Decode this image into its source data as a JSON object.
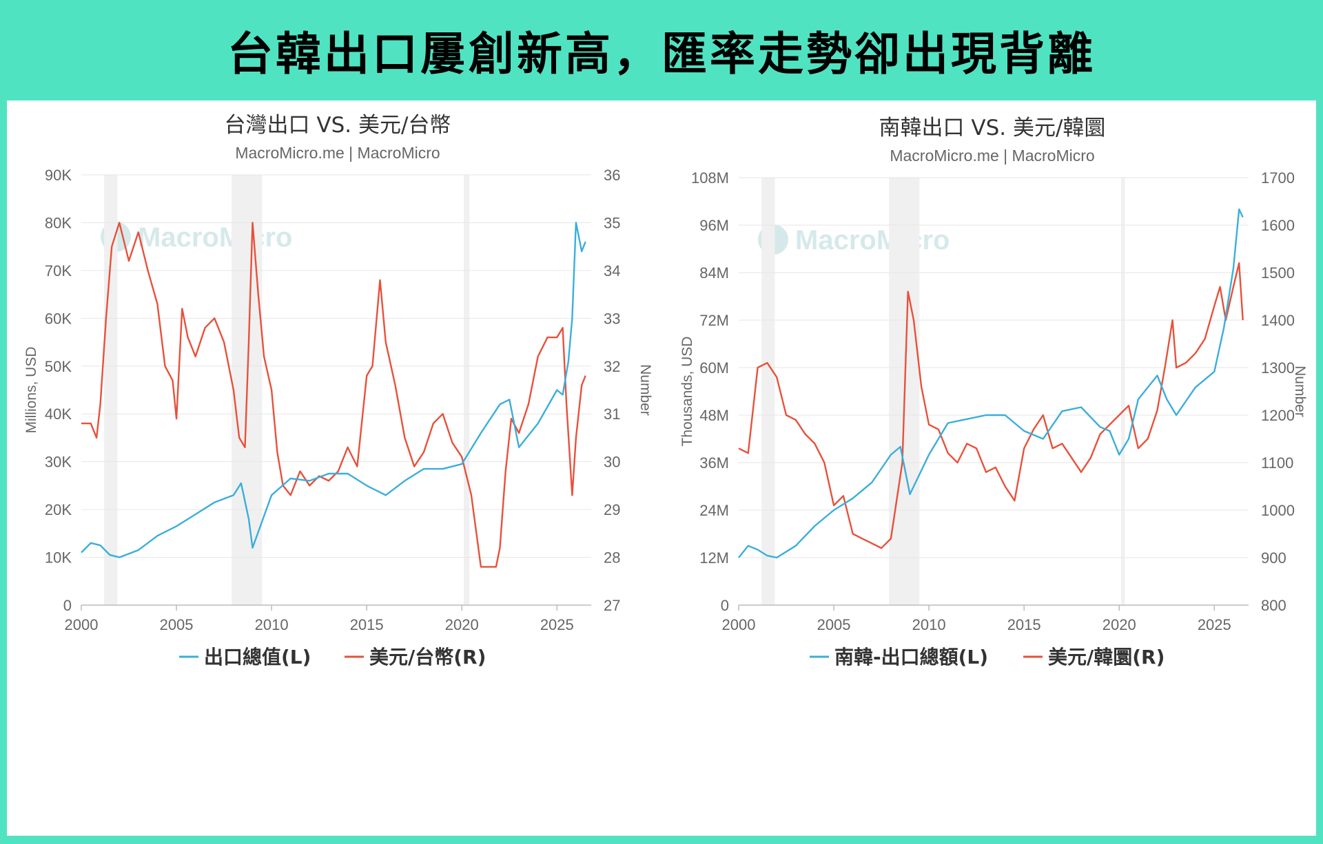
{
  "banner": {
    "title": "台韓出口屢創新高，匯率走勢卻出現背離"
  },
  "watermark": "MacroMicro",
  "colors": {
    "accent": "#50e3c2",
    "left_series": "#3aaedb",
    "right_series": "#e8503a",
    "recession": "#f0f0f0"
  },
  "chart_data": [
    {
      "type": "line",
      "title": "台灣出口 VS. 美元/台幣",
      "subtitle": "MacroMicro.me | MacroMicro",
      "ylabel_left": "Millions, USD",
      "ylabel_right": "Number",
      "x_ticks": [
        "2000",
        "2005",
        "2010",
        "2015",
        "2020",
        "2025"
      ],
      "xlim": [
        2000,
        2026.8
      ],
      "y_left_ticks": [
        "0",
        "10K",
        "20K",
        "30K",
        "40K",
        "50K",
        "60K",
        "70K",
        "80K",
        "90K"
      ],
      "y_left_lim": [
        0,
        90000
      ],
      "y_right_ticks": [
        "27",
        "28",
        "29",
        "30",
        "31",
        "32",
        "33",
        "34",
        "35",
        "36"
      ],
      "y_right_lim": [
        27,
        36
      ],
      "recessions": [
        [
          2001.2,
          2001.9
        ],
        [
          2007.9,
          2009.5
        ],
        [
          2020.1,
          2020.4
        ]
      ],
      "legend": [
        "出口總值(L)",
        "美元/台幣(R)"
      ],
      "series": [
        {
          "name": "出口總值(L)",
          "axis": "left",
          "x": [
            2000,
            2000.5,
            2001,
            2001.5,
            2002,
            2003,
            2004,
            2005,
            2006,
            2007,
            2008,
            2008.4,
            2008.8,
            2009,
            2009.5,
            2010,
            2011,
            2012,
            2013,
            2014,
            2015,
            2016,
            2017,
            2018,
            2019,
            2020,
            2021,
            2022,
            2022.5,
            2023,
            2024,
            2025,
            2025.3,
            2025.6,
            2025.8,
            2026,
            2026.3,
            2026.5
          ],
          "y": [
            11000,
            13000,
            12500,
            10500,
            10000,
            11500,
            14500,
            16500,
            19000,
            21500,
            23000,
            25500,
            18000,
            12000,
            17500,
            23000,
            26500,
            26000,
            27500,
            27500,
            25000,
            23000,
            26000,
            28500,
            28500,
            29500,
            36000,
            42000,
            43000,
            33000,
            38000,
            45000,
            44000,
            51000,
            60000,
            80000,
            74000,
            76000
          ]
        },
        {
          "name": "美元/台幣(R)",
          "axis": "right",
          "x": [
            2000,
            2000.5,
            2000.8,
            2001,
            2001.3,
            2001.6,
            2002,
            2002.5,
            2003,
            2003.5,
            2004,
            2004.4,
            2004.8,
            2005,
            2005.3,
            2005.6,
            2006,
            2006.5,
            2007,
            2007.5,
            2008,
            2008.3,
            2008.6,
            2008.8,
            2009,
            2009.3,
            2009.6,
            2010,
            2010.3,
            2010.6,
            2011,
            2011.5,
            2012,
            2012.5,
            2013,
            2013.5,
            2014,
            2014.5,
            2015,
            2015.3,
            2015.7,
            2016,
            2016.5,
            2017,
            2017.5,
            2018,
            2018.5,
            2019,
            2019.5,
            2020,
            2020.5,
            2021,
            2021.5,
            2021.8,
            2022,
            2022.3,
            2022.6,
            2023,
            2023.5,
            2024,
            2024.5,
            2025,
            2025.3,
            2025.5,
            2025.8,
            2026,
            2026.3,
            2026.5
          ],
          "y": [
            30.8,
            30.8,
            30.5,
            31.2,
            33,
            34.5,
            35,
            34.2,
            34.8,
            34,
            33.3,
            32,
            31.7,
            30.9,
            33.2,
            32.6,
            32.2,
            32.8,
            33,
            32.5,
            31.5,
            30.5,
            30.3,
            32.5,
            35,
            33.5,
            32.2,
            31.5,
            30.2,
            29.5,
            29.3,
            29.8,
            29.5,
            29.7,
            29.6,
            29.8,
            30.3,
            29.9,
            31.8,
            32,
            33.8,
            32.5,
            31.6,
            30.5,
            29.9,
            30.2,
            30.8,
            31.0,
            30.4,
            30.1,
            29.3,
            27.8,
            27.8,
            27.8,
            28.2,
            29.8,
            30.9,
            30.6,
            31.2,
            32.2,
            32.6,
            32.6,
            32.8,
            31.2,
            29.3,
            30.5,
            31.6,
            31.8
          ]
        }
      ]
    },
    {
      "type": "line",
      "title": "南韓出口 VS. 美元/韓圜",
      "subtitle": "MacroMicro.me | MacroMicro",
      "ylabel_left": "Thousands, USD",
      "ylabel_right": "Number",
      "x_ticks": [
        "2000",
        "2005",
        "2010",
        "2015",
        "2020",
        "2025"
      ],
      "xlim": [
        2000,
        2026.8
      ],
      "y_left_ticks": [
        "0",
        "12M",
        "24M",
        "36M",
        "48M",
        "60M",
        "72M",
        "84M",
        "96M",
        "108M"
      ],
      "y_left_lim": [
        0,
        108000000
      ],
      "y_right_ticks": [
        "800",
        "900",
        "1000",
        "1100",
        "1200",
        "1300",
        "1400",
        "1500",
        "1600",
        "1700"
      ],
      "y_right_lim": [
        800,
        1700
      ],
      "recessions": [
        [
          2001.2,
          2001.9
        ],
        [
          2007.9,
          2009.5
        ],
        [
          2020.1,
          2020.3
        ]
      ],
      "legend": [
        "南韓-出口總額(L)",
        "美元/韓圜(R)"
      ],
      "series": [
        {
          "name": "南韓-出口總額(L)",
          "axis": "left",
          "x": [
            2000,
            2000.5,
            2001,
            2001.5,
            2002,
            2003,
            2004,
            2005,
            2006,
            2007,
            2008,
            2008.5,
            2009,
            2010,
            2011,
            2012,
            2013,
            2014,
            2015,
            2016,
            2017,
            2018,
            2019,
            2019.5,
            2020,
            2020.5,
            2021,
            2022,
            2022.5,
            2023,
            2024,
            2025,
            2025.5,
            2026,
            2026.3,
            2026.5
          ],
          "y": [
            12000000,
            15000000,
            14000000,
            12500000,
            12000000,
            15000000,
            20000000,
            24000000,
            27000000,
            31000000,
            38000000,
            40000000,
            28000000,
            38000000,
            46000000,
            47000000,
            48000000,
            48000000,
            44000000,
            42000000,
            49000000,
            50000000,
            45000000,
            44000000,
            38000000,
            42000000,
            52000000,
            58000000,
            52000000,
            48000000,
            55000000,
            59000000,
            70000000,
            85000000,
            100000000,
            98000000
          ]
        },
        {
          "name": "美元/韓圜(R)",
          "axis": "right",
          "x": [
            2000,
            2000.5,
            2001,
            2001.5,
            2002,
            2002.5,
            2003,
            2003.5,
            2004,
            2004.5,
            2005,
            2005.5,
            2006,
            2006.5,
            2007,
            2007.5,
            2008,
            2008.3,
            2008.6,
            2008.9,
            2009.2,
            2009.6,
            2010,
            2010.5,
            2011,
            2011.5,
            2012,
            2012.5,
            2013,
            2013.5,
            2014,
            2014.5,
            2015,
            2015.5,
            2016,
            2016.5,
            2017,
            2017.5,
            2018,
            2018.5,
            2019,
            2019.5,
            2020,
            2020.5,
            2021,
            2021.5,
            2022,
            2022.4,
            2022.8,
            2023,
            2023.5,
            2024,
            2024.5,
            2025,
            2025.3,
            2025.6,
            2026,
            2026.3,
            2026.5
          ],
          "y": [
            1130,
            1120,
            1300,
            1310,
            1280,
            1200,
            1190,
            1160,
            1140,
            1100,
            1010,
            1030,
            950,
            940,
            930,
            920,
            940,
            1020,
            1100,
            1460,
            1400,
            1260,
            1180,
            1170,
            1120,
            1100,
            1140,
            1130,
            1080,
            1090,
            1050,
            1020,
            1130,
            1170,
            1200,
            1130,
            1140,
            1110,
            1080,
            1110,
            1160,
            1180,
            1200,
            1220,
            1130,
            1150,
            1210,
            1300,
            1400,
            1300,
            1310,
            1330,
            1360,
            1430,
            1470,
            1400,
            1470,
            1520,
            1400
          ]
        }
      ]
    }
  ]
}
